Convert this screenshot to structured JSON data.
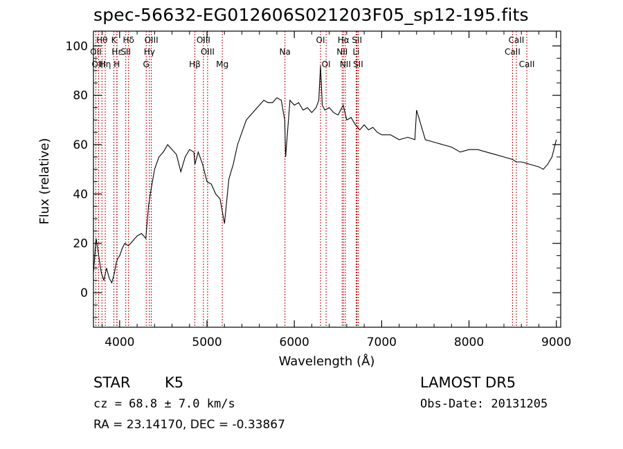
{
  "title": "spec-56632-EG012606S021203F05_sp12-195.fits",
  "info": {
    "class_label": "STAR",
    "subclass_label": "K5",
    "survey": "LAMOST DR5",
    "cz": "cz = 68.8 ± 7.0 km/s",
    "obs_date": "Obs-Date: 20131205",
    "coords": "RA =  23.14170, DEC =  -0.33867"
  },
  "chart_data": {
    "type": "line",
    "xlabel": "Wavelength (Å)",
    "ylabel": "Flux (relative)",
    "xlim": [
      3700,
      9050
    ],
    "ylim": [
      -14,
      106
    ],
    "x_ticks": [
      4000,
      5000,
      6000,
      7000,
      8000,
      9000
    ],
    "y_ticks": [
      0,
      20,
      40,
      60,
      80,
      100
    ],
    "x_tick_labels": [
      "4000",
      "5000",
      "6000",
      "7000",
      "8000",
      "9000"
    ],
    "y_tick_labels": [
      "0",
      "20",
      "40",
      "60",
      "80",
      "100"
    ],
    "grid": false,
    "series": [
      {
        "x": [
          3700,
          3730,
          3760,
          3790,
          3820,
          3850,
          3880,
          3910,
          3940,
          3960,
          3980,
          4000,
          4030,
          4060,
          4100,
          4150,
          4200,
          4250,
          4300,
          4330,
          4360,
          4400,
          4450,
          4500,
          4550,
          4600,
          4650,
          4700,
          4750,
          4800,
          4850,
          4861,
          4900,
          4950,
          5000,
          5050,
          5100,
          5150,
          5175,
          5200,
          5250,
          5300,
          5350,
          5400,
          5450,
          5500,
          5550,
          5600,
          5650,
          5700,
          5750,
          5800,
          5850,
          5890,
          5900,
          5950,
          6000,
          6050,
          6100,
          6150,
          6200,
          6250,
          6280,
          6300,
          6320,
          6350,
          6400,
          6450,
          6500,
          6560,
          6600,
          6650,
          6700,
          6750,
          6800,
          6850,
          6900,
          6950,
          7000,
          7100,
          7200,
          7300,
          7380,
          7400,
          7500,
          7600,
          7700,
          7800,
          7900,
          8000,
          8100,
          8200,
          8300,
          8400,
          8500,
          8540,
          8600,
          8700,
          8800,
          8850,
          8900,
          8950,
          9000
        ],
        "y": [
          8,
          22,
          15,
          8,
          5,
          10,
          6,
          4,
          8,
          12,
          14,
          15,
          18,
          20,
          19,
          21,
          23,
          24,
          22,
          35,
          42,
          50,
          55,
          57,
          60,
          58,
          56,
          49,
          55,
          58,
          57,
          52,
          57,
          52,
          45,
          44,
          40,
          38,
          33,
          28,
          46,
          52,
          60,
          65,
          70,
          72,
          74,
          76,
          78,
          77,
          77,
          79,
          78,
          70,
          55,
          78,
          76,
          77,
          74,
          75,
          73,
          75,
          78,
          92,
          76,
          74,
          75,
          73,
          72,
          76,
          70,
          71,
          68,
          66,
          68,
          66,
          67,
          65,
          64,
          64,
          62,
          63,
          62,
          74,
          62,
          61,
          60,
          59,
          57,
          58,
          58,
          57,
          56,
          55,
          54,
          53,
          53,
          52,
          51,
          50,
          52,
          55,
          62
        ]
      }
    ],
    "lines": [
      {
        "label": "Hθ",
        "x": 3797,
        "row": 0
      },
      {
        "label": "OII",
        "x": 3727,
        "row": 1
      },
      {
        "label": "OIII",
        "x": 3760,
        "row": 2
      },
      {
        "label": "Hη",
        "x": 3835,
        "row": 2
      },
      {
        "label": "K",
        "x": 3934,
        "row": 0
      },
      {
        "label": "Hε",
        "x": 3970,
        "row": 1
      },
      {
        "label": "H",
        "x": 3968,
        "row": 2
      },
      {
        "label": "Hδ",
        "x": 4102,
        "row": 0
      },
      {
        "label": "SII",
        "x": 4070,
        "row": 1
      },
      {
        "label": "OIII",
        "x": 4363,
        "row": 0
      },
      {
        "label": "Hγ",
        "x": 4341,
        "row": 1
      },
      {
        "label": "G",
        "x": 4304,
        "row": 2
      },
      {
        "label": "Hβ",
        "x": 4861,
        "row": 2
      },
      {
        "label": "OIII",
        "x": 4959,
        "row": 0
      },
      {
        "label": "OIII",
        "x": 5007,
        "row": 1
      },
      {
        "label": "Mg",
        "x": 5175,
        "row": 2
      },
      {
        "label": "Na",
        "x": 5893,
        "row": 1
      },
      {
        "label": "OI",
        "x": 6300,
        "row": 0
      },
      {
        "label": "OI",
        "x": 6364,
        "row": 2
      },
      {
        "label": "Hα",
        "x": 6563,
        "row": 0
      },
      {
        "label": "NII",
        "x": 6548,
        "row": 1
      },
      {
        "label": "NII",
        "x": 6584,
        "row": 2
      },
      {
        "label": "SII",
        "x": 6717,
        "row": 0
      },
      {
        "label": "Li",
        "x": 6708,
        "row": 1
      },
      {
        "label": "SII",
        "x": 6731,
        "row": 2
      },
      {
        "label": "CaII",
        "x": 8542,
        "row": 0
      },
      {
        "label": "CaII",
        "x": 8498,
        "row": 1
      },
      {
        "label": "CaII",
        "x": 8662,
        "row": 2
      }
    ]
  }
}
